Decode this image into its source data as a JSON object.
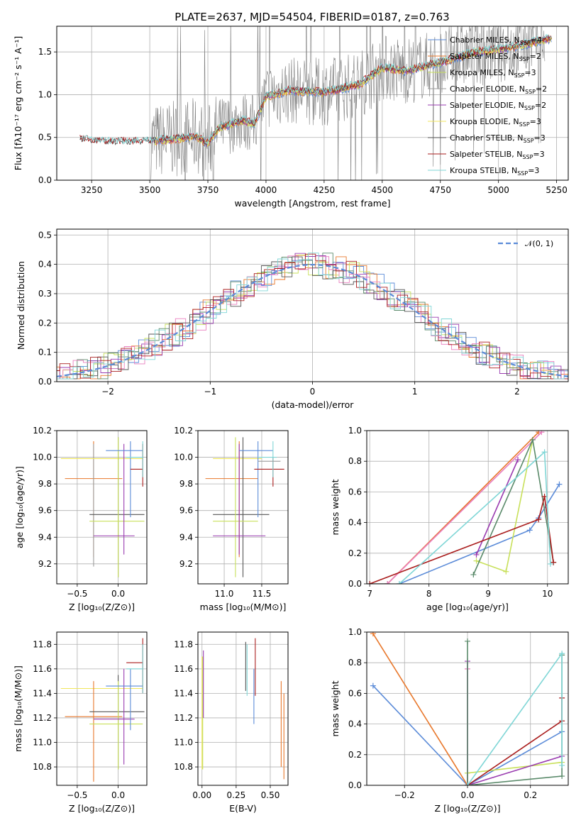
{
  "title": "PLATE=2637, MJD=54504, FIBERID=0187, z=0.763",
  "colors": {
    "chabrier_miles": "#5b8bd8",
    "salpeter_miles": "#e8782c",
    "kroupa_miles": "#c8e05a",
    "chabrier_elodie": "#9a9a9a",
    "salpeter_elodie": "#9a3cb0",
    "kroupa_elodie": "#f0e65a",
    "chabrier_stelib": "#555555",
    "salpeter_stelib": "#aa1e1e",
    "kroupa_stelib": "#7fd6d6",
    "grid": "#b0b0b0",
    "obs": "#808080"
  },
  "chart_data": [
    {
      "type": "line",
      "id": "spectrum",
      "xlabel": "wavelength [Angstrom, rest frame]",
      "ylabel": "Flux [fλ10⁻¹⁷ erg cm⁻² s⁻¹ A⁻¹]",
      "xlim": [
        3100,
        5300
      ],
      "ylim": [
        0,
        1.8
      ],
      "xticks": [
        3250,
        3500,
        3750,
        4000,
        4250,
        4500,
        4750,
        5000,
        5250
      ],
      "yticks": [
        0.0,
        0.5,
        1.0,
        1.5
      ],
      "ytick_labels": [
        "0.0",
        "0.5",
        "1.0",
        "1.5"
      ],
      "legend_position": "top-right",
      "legend": [
        {
          "label": "Chabrier MILES, N_SSP=4",
          "text": "Chabrier MILES, N",
          "n": "=4",
          "color_key": "chabrier_miles"
        },
        {
          "label": "Salpeter MILES, N_SSP=2",
          "text": "Salpeter MILES, N",
          "n": "=2",
          "color_key": "salpeter_miles"
        },
        {
          "label": "Kroupa MILES, N_SSP=3",
          "text": "Kroupa MILES, N",
          "n": "=3",
          "color_key": "kroupa_miles"
        },
        {
          "label": "Chabrier ELODIE, N_SSP=2",
          "text": "Chabrier ELODIE, N",
          "n": "=2",
          "color_key": "chabrier_elodie"
        },
        {
          "label": "Salpeter ELODIE, N_SSP=2",
          "text": "Salpeter ELODIE, N",
          "n": "=2",
          "color_key": "salpeter_elodie"
        },
        {
          "label": "Kroupa ELODIE, N_SSP=3",
          "text": "Kroupa ELODIE, N",
          "n": "=3",
          "color_key": "kroupa_elodie"
        },
        {
          "label": "Chabrier STELIB, N_SSP=3",
          "text": "Chabrier STELIB, N",
          "n": "=3",
          "color_key": "chabrier_stelib"
        },
        {
          "label": "Salpeter STELIB, N_SSP=3",
          "text": "Salpeter STELIB, N",
          "n": "=3",
          "color_key": "salpeter_stelib"
        },
        {
          "label": "Kroupa STELIB, N_SSP=3",
          "text": "Kroupa STELIB, N",
          "n": "=3",
          "color_key": "kroupa_stelib"
        }
      ],
      "model_trend": {
        "x": [
          3200,
          3300,
          3400,
          3500,
          3600,
          3700,
          3750,
          3800,
          3900,
          3950,
          4000,
          4100,
          4250,
          4400,
          4500,
          4600,
          4750,
          4900,
          5000,
          5100,
          5200
        ],
        "y": [
          0.48,
          0.45,
          0.45,
          0.46,
          0.48,
          0.52,
          0.43,
          0.62,
          0.7,
          0.66,
          0.98,
          1.05,
          1.03,
          1.12,
          1.32,
          1.28,
          1.38,
          1.5,
          1.53,
          1.58,
          1.65
        ]
      }
    },
    {
      "type": "line",
      "id": "residuals",
      "xlabel": "(data-model)/error",
      "ylabel": "Normed distribution",
      "xlim": [
        -2.5,
        2.5
      ],
      "ylim": [
        0,
        0.52
      ],
      "xticks": [
        -2,
        -1,
        0,
        1,
        2
      ],
      "xtick_labels": [
        "−2",
        "−1",
        "0",
        "1",
        "2"
      ],
      "yticks": [
        0.0,
        0.1,
        0.2,
        0.3,
        0.4,
        0.5
      ],
      "ytick_labels": [
        "0.0",
        "0.1",
        "0.2",
        "0.3",
        "0.4",
        "0.5"
      ],
      "legend_position": "top-right",
      "legend": [
        {
          "label": "𝒩(0, 1)",
          "color_key": "chabrier_miles"
        }
      ]
    },
    {
      "type": "scatter",
      "id": "z-age",
      "xlabel": "Z [log₁₀(Z/Z⊙)]",
      "ylabel": "age  [log₁₀(age/yr)]",
      "xlim": [
        -0.75,
        0.35
      ],
      "ylim": [
        9.05,
        10.2
      ],
      "xticks": [
        -0.5,
        0.0
      ],
      "xtick_labels": [
        "−0.5",
        "0.0"
      ],
      "yticks": [
        9.2,
        9.4,
        9.6,
        9.8,
        10.0,
        10.2
      ],
      "ytick_labels": [
        "9.2",
        "9.4",
        "9.6",
        "9.8",
        "10.0",
        "10.2"
      ],
      "points": [
        {
          "c": "salpeter_miles",
          "x": -0.3,
          "y": 9.84,
          "xe": [
            -0.65,
            0.05
          ],
          "ye": [
            9.25,
            10.12
          ]
        },
        {
          "c": "chabrier_elodie",
          "x": -0.3,
          "y": 9.63,
          "xe": [
            -0.3,
            -0.3
          ],
          "ye": [
            9.18,
            10.1
          ]
        },
        {
          "c": "kroupa_elodie",
          "x": 0.0,
          "y": 9.99,
          "xe": [
            -0.7,
            0.3
          ],
          "ye": [
            9.99,
            9.99
          ]
        },
        {
          "c": "chabrier_stelib",
          "x": 0.0,
          "y": 9.57,
          "xe": [
            -0.35,
            0.32
          ],
          "ye": [
            9.1,
            10.15
          ]
        },
        {
          "c": "kroupa_miles",
          "x": 0.0,
          "y": 9.52,
          "xe": [
            -0.35,
            0.32
          ],
          "ye": [
            9.1,
            10.15
          ]
        },
        {
          "c": "salpeter_elodie",
          "x": 0.07,
          "y": 9.41,
          "xe": [
            -0.3,
            0.2
          ],
          "ye": [
            9.27,
            10.1
          ]
        },
        {
          "c": "chabrier_miles",
          "x": 0.15,
          "y": 10.05,
          "xe": [
            -0.15,
            0.3
          ],
          "ye": [
            9.55,
            10.12
          ]
        },
        {
          "c": "salpeter_stelib",
          "x": 0.3,
          "y": 9.91,
          "xe": [
            0.15,
            0.3
          ],
          "ye": [
            9.78,
            10.1
          ]
        },
        {
          "c": "kroupa_stelib",
          "x": 0.3,
          "y": 10.0,
          "xe": [
            0.1,
            0.3
          ],
          "ye": [
            9.85,
            10.12
          ]
        }
      ]
    },
    {
      "type": "scatter",
      "id": "mass-age",
      "xlabel": "mass [log₁₀(M/M⊙)]",
      "ylabel": "",
      "xlim": [
        10.65,
        11.85
      ],
      "ylim": [
        9.05,
        10.2
      ],
      "xticks": [
        11.0,
        11.5
      ],
      "xtick_labels": [
        "11.0",
        "11.5"
      ],
      "yticks": [
        9.2,
        9.4,
        9.6,
        9.8,
        10.0,
        10.2
      ],
      "ytick_labels": [
        "9.2",
        "9.4",
        "9.6",
        "9.8",
        "10.0",
        "10.2"
      ],
      "points": [
        {
          "c": "salpeter_miles",
          "x": 11.2,
          "y": 9.84,
          "xe": [
            10.75,
            11.45
          ],
          "ye": [
            9.25,
            10.12
          ]
        },
        {
          "c": "kroupa_elodie",
          "x": 11.2,
          "y": 9.99,
          "xe": [
            10.85,
            11.5
          ],
          "ye": [
            9.99,
            9.99
          ]
        },
        {
          "c": "chabrier_stelib",
          "x": 11.25,
          "y": 9.57,
          "xe": [
            10.85,
            11.6
          ],
          "ye": [
            9.1,
            10.15
          ]
        },
        {
          "c": "kroupa_miles",
          "x": 11.15,
          "y": 9.52,
          "xe": [
            10.85,
            11.45
          ],
          "ye": [
            9.1,
            10.15
          ]
        },
        {
          "c": "salpeter_elodie",
          "x": 11.2,
          "y": 9.41,
          "xe": [
            10.85,
            11.55
          ],
          "ye": [
            9.27,
            10.1
          ]
        },
        {
          "c": "chabrier_miles",
          "x": 11.45,
          "y": 10.05,
          "xe": [
            11.2,
            11.65
          ],
          "ye": [
            9.55,
            10.12
          ]
        },
        {
          "c": "salpeter_stelib",
          "x": 11.65,
          "y": 9.91,
          "xe": [
            11.4,
            11.8
          ],
          "ye": [
            9.78,
            10.0
          ]
        },
        {
          "c": "kroupa_stelib",
          "x": 11.65,
          "y": 10.0,
          "xe": [
            11.45,
            11.7
          ],
          "ye": [
            9.85,
            10.12
          ]
        },
        {
          "c": "chabrier_elodie",
          "x": 11.6,
          "y": 9.97,
          "xe": [
            11.45,
            11.75
          ],
          "ye": [
            9.97,
            9.97
          ]
        }
      ]
    },
    {
      "type": "line",
      "id": "age-weight",
      "xlabel": "age  [log₁₀(age/yr)]",
      "ylabel": "mass weight",
      "xlim": [
        6.95,
        10.35
      ],
      "ylim": [
        0,
        1.0
      ],
      "xticks": [
        7,
        8,
        9,
        10
      ],
      "xtick_labels": [
        "7",
        "8",
        "9",
        "10"
      ],
      "yticks": [
        0.0,
        0.2,
        0.4,
        0.6,
        0.8,
        1.0
      ],
      "ytick_labels": [
        "0.0",
        "0.2",
        "0.4",
        "0.6",
        "0.8",
        "1.0"
      ],
      "series": [
        {
          "c": "chabrier_miles",
          "x": [
            7.5,
            9.7,
            9.85,
            10.2
          ],
          "y": [
            0.0,
            0.35,
            0.43,
            0.65
          ]
        },
        {
          "c": "salpeter_miles",
          "x": [
            7.3,
            9.85
          ],
          "y": [
            0.0,
            0.99
          ]
        },
        {
          "c": "chabrier_elodie",
          "x": [
            7.0,
            7.3
          ],
          "y": [
            0.0,
            0.0
          ]
        },
        {
          "c": "kroupa_elodie",
          "x": [
            7.3,
            9.9
          ],
          "y": [
            0.0,
            0.99
          ]
        },
        {
          "c": "kroupa_miles",
          "x": [
            8.8,
            9.3,
            9.75
          ],
          "y": [
            0.15,
            0.08,
            0.94
          ]
        },
        {
          "c": "salpeter_elodie",
          "x": [
            8.8,
            9.5
          ],
          "y": [
            0.19,
            0.81
          ]
        },
        {
          "c": "chabrier_stelib",
          "x": [
            8.75,
            9.75,
            10.1
          ],
          "y": [
            0.06,
            0.94,
            0.14
          ]
        },
        {
          "c": "salpeter_stelib",
          "x": [
            7.0,
            9.85,
            9.95,
            10.1
          ],
          "y": [
            0.0,
            0.42,
            0.57,
            0.14
          ]
        },
        {
          "c": "kroupa_stelib",
          "x": [
            7.5,
            9.95,
            10.05
          ],
          "y": [
            0.0,
            0.86,
            0.13
          ]
        }
      ]
    },
    {
      "type": "scatter",
      "id": "z-mass",
      "xlabel": "Z [log₁₀(Z/Z⊙)]",
      "ylabel": "mass [log₁₀(M/M⊙)]",
      "xlim": [
        -0.75,
        0.35
      ],
      "ylim": [
        10.65,
        11.9
      ],
      "xticks": [
        -0.5,
        0.0
      ],
      "xtick_labels": [
        "−0.5",
        "0.0"
      ],
      "yticks": [
        10.8,
        11.0,
        11.2,
        11.4,
        11.6,
        11.8
      ],
      "ytick_labels": [
        "10.8",
        "11.0",
        "11.2",
        "11.4",
        "11.6",
        "11.8"
      ],
      "points": [
        {
          "c": "kroupa_elodie",
          "x": 0.0,
          "y": 11.44,
          "xe": [
            -0.7,
            0.3
          ],
          "ye": [
            11.44,
            11.44
          ]
        },
        {
          "c": "salpeter_miles",
          "x": -0.3,
          "y": 11.21,
          "xe": [
            -0.65,
            0.05
          ],
          "ye": [
            10.68,
            11.5
          ]
        },
        {
          "c": "chabrier_stelib",
          "x": 0.0,
          "y": 11.25,
          "xe": [
            -0.35,
            0.32
          ],
          "ye": [
            10.78,
            11.55
          ]
        },
        {
          "c": "kroupa_miles",
          "x": 0.0,
          "y": 11.15,
          "xe": [
            -0.35,
            0.3
          ],
          "ye": [
            10.78,
            11.5
          ]
        },
        {
          "c": "salpeter_elodie",
          "x": 0.07,
          "y": 11.19,
          "xe": [
            -0.3,
            0.2
          ],
          "ye": [
            10.82,
            11.6
          ]
        },
        {
          "c": "chabrier_miles",
          "x": 0.15,
          "y": 11.46,
          "xe": [
            -0.15,
            0.3
          ],
          "ye": [
            11.1,
            11.6
          ]
        },
        {
          "c": "salpeter_stelib",
          "x": 0.3,
          "y": 11.65,
          "xe": [
            0.1,
            0.3
          ],
          "ye": [
            11.4,
            11.85
          ]
        },
        {
          "c": "kroupa_stelib",
          "x": 0.3,
          "y": 11.6,
          "xe": [
            0.1,
            0.3
          ],
          "ye": [
            11.4,
            11.8
          ]
        }
      ]
    },
    {
      "type": "scatter",
      "id": "ebv-mass",
      "xlabel": "E(B-V)",
      "ylabel": "",
      "xlim": [
        -0.03,
        0.63
      ],
      "ylim": [
        10.65,
        11.9
      ],
      "xticks": [
        0.0,
        0.25,
        0.5
      ],
      "xtick_labels": [
        "0.00",
        "0.25",
        "0.50"
      ],
      "yticks": [
        10.8,
        11.0,
        11.2,
        11.4,
        11.6,
        11.8
      ],
      "ytick_labels": [
        "10.8",
        "11.0",
        "11.2",
        "11.4",
        "11.6",
        "11.8"
      ],
      "points": [
        {
          "c": "kroupa_elodie",
          "x": 0.0,
          "y": 11.44,
          "ye": [
            10.78,
            11.7
          ]
        },
        {
          "c": "kroupa_miles",
          "x": 0.005,
          "y": 11.2,
          "ye": [
            10.78,
            11.7
          ]
        },
        {
          "c": "salpeter_elodie",
          "x": 0.01,
          "y": 11.4,
          "ye": [
            11.2,
            11.75
          ]
        },
        {
          "c": "chabrier_stelib",
          "x": 0.32,
          "y": 11.6,
          "ye": [
            11.42,
            11.82
          ]
        },
        {
          "c": "kroupa_stelib",
          "x": 0.33,
          "y": 11.55,
          "ye": [
            11.38,
            11.8
          ]
        },
        {
          "c": "chabrier_miles",
          "x": 0.38,
          "y": 11.45,
          "ye": [
            11.15,
            11.6
          ]
        },
        {
          "c": "salpeter_stelib",
          "x": 0.39,
          "y": 11.6,
          "ye": [
            11.38,
            11.85
          ]
        },
        {
          "c": "salpeter_miles",
          "x": 0.58,
          "y": 11.2,
          "ye": [
            10.8,
            11.5
          ]
        },
        {
          "c": "salpeter_miles",
          "x": 0.6,
          "y": 11.0,
          "ye": [
            10.7,
            11.4
          ]
        }
      ]
    },
    {
      "type": "line",
      "id": "z-weight",
      "xlabel": "Z [log₁₀(Z/Z⊙)]",
      "ylabel": "mass weight",
      "xlim": [
        -0.32,
        0.32
      ],
      "ylim": [
        0,
        1.0
      ],
      "xticks": [
        -0.2,
        0.0,
        0.2
      ],
      "xtick_labels": [
        "−0.2",
        "0.0",
        "0.2"
      ],
      "yticks": [
        0.0,
        0.2,
        0.4,
        0.6,
        0.8,
        1.0
      ],
      "ytick_labels": [
        "0.0",
        "0.2",
        "0.4",
        "0.6",
        "0.8",
        "1.0"
      ],
      "series": [
        {
          "c": "chabrier_miles",
          "x": [
            -0.3,
            0.0,
            0.3
          ],
          "y": [
            0.65,
            0.0,
            0.35
          ]
        },
        {
          "c": "salpeter_miles",
          "x": [
            -0.3,
            0.0
          ],
          "y": [
            0.99,
            0.0
          ]
        },
        {
          "c": "kroupa_elodie",
          "x": [
            0.0,
            0.0
          ],
          "y": [
            0.76,
            0.0
          ]
        },
        {
          "c": "kroupa_miles",
          "x": [
            0.0,
            0.0,
            0.3
          ],
          "y": [
            0.0,
            0.08,
            0.15
          ]
        },
        {
          "c": "salpeter_elodie",
          "x": [
            0.0,
            0.0,
            0.3
          ],
          "y": [
            0.81,
            0.0,
            0.19
          ]
        },
        {
          "c": "chabrier_stelib",
          "x": [
            0.0,
            0.0,
            0.3,
            0.3
          ],
          "y": [
            0.94,
            0.0,
            0.06,
            0.85
          ]
        },
        {
          "c": "salpeter_stelib",
          "x": [
            0.0,
            0.3,
            0.3
          ],
          "y": [
            0.0,
            0.42,
            0.57
          ]
        },
        {
          "c": "kroupa_stelib",
          "x": [
            0.0,
            0.3,
            0.3
          ],
          "y": [
            0.0,
            0.86,
            0.13
          ]
        }
      ]
    }
  ]
}
